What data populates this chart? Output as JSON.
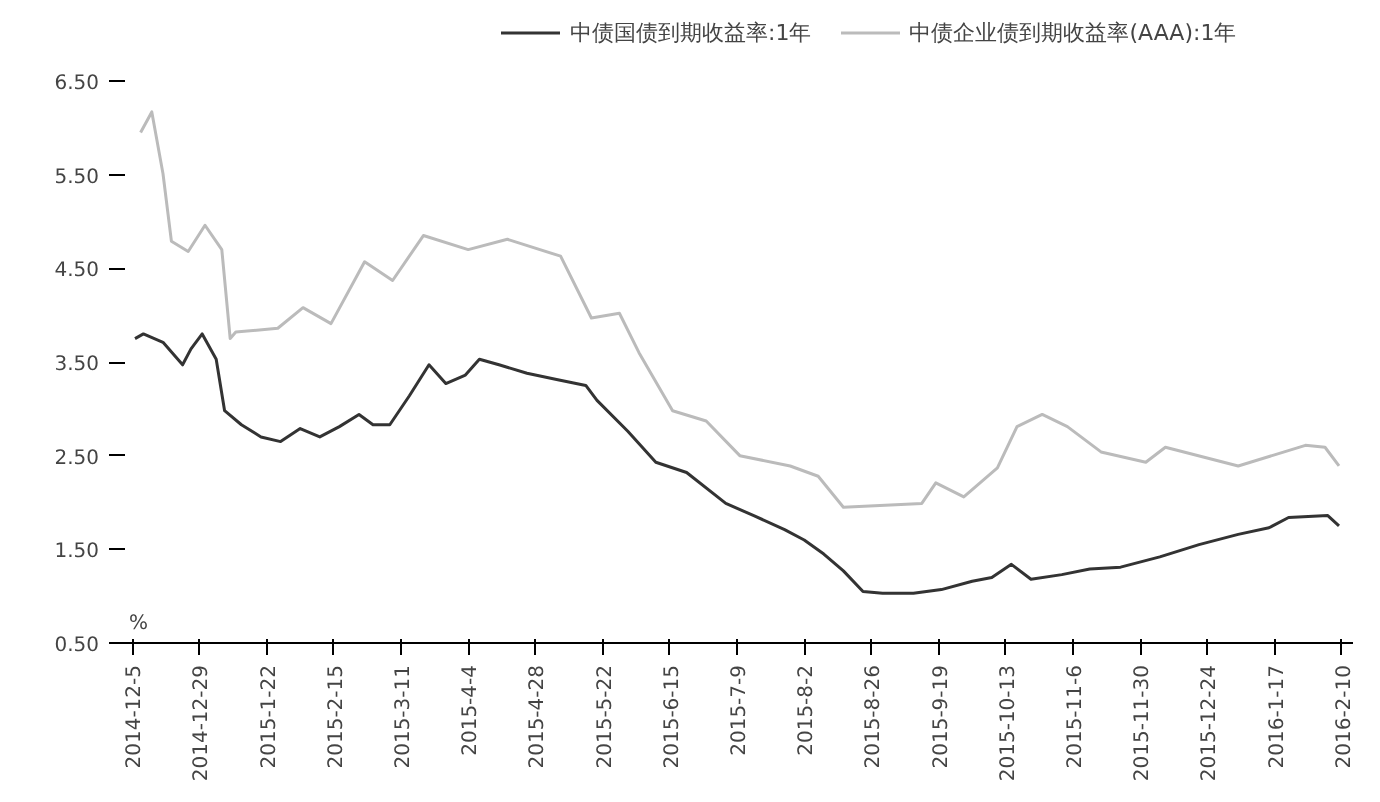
{
  "chart_data": {
    "type": "line",
    "legend": "top",
    "grid": false,
    "marker": "none",
    "line_style": "solid",
    "annotations": [
      "%"
    ],
    "xlim": [
      "2014-12-01",
      "2016-02-14"
    ],
    "xticks": [
      {
        "value": "2014-12-05",
        "label": "2014-12-5"
      },
      {
        "value": "2014-12-29",
        "label": "2014-12-29"
      },
      {
        "value": "2015-01-22",
        "label": "2015-1-22"
      },
      {
        "value": "2015-02-15",
        "label": "2015-2-15"
      },
      {
        "value": "2015-03-11",
        "label": "2015-3-11"
      },
      {
        "value": "2015-04-04",
        "label": "2015-4-4"
      },
      {
        "value": "2015-04-28",
        "label": "2015-4-28"
      },
      {
        "value": "2015-05-22",
        "label": "2015-5-22"
      },
      {
        "value": "2015-06-15",
        "label": "2015-6-15"
      },
      {
        "value": "2015-07-09",
        "label": "2015-7-9"
      },
      {
        "value": "2015-08-02",
        "label": "2015-8-2"
      },
      {
        "value": "2015-08-26",
        "label": "2015-8-26"
      },
      {
        "value": "2015-09-19",
        "label": "2015-9-19"
      },
      {
        "value": "2015-10-13",
        "label": "2015-10-13"
      },
      {
        "value": "2015-11-06",
        "label": "2015-11-6"
      },
      {
        "value": "2015-11-30",
        "label": "2015-11-30"
      },
      {
        "value": "2015-12-24",
        "label": "2015-12-24"
      },
      {
        "value": "2016-01-17",
        "label": "2016-1-17"
      },
      {
        "value": "2016-02-10",
        "label": "2016-2-10"
      }
    ],
    "ylim": [
      0.5,
      6.5
    ],
    "yticks": [
      {
        "value": 0.5,
        "label": "0.50"
      },
      {
        "value": 1.5,
        "label": "1.50"
      },
      {
        "value": 2.5,
        "label": "2.50"
      },
      {
        "value": 3.5,
        "label": "3.50"
      },
      {
        "value": 4.5,
        "label": "4.50"
      },
      {
        "value": 5.5,
        "label": "5.50"
      },
      {
        "value": 6.5,
        "label": "6.50"
      }
    ],
    "series": [
      {
        "name": "中债国债到期收益率:1年",
        "color": "#333333",
        "x": [
          "2014-12-06",
          "2014-12-09",
          "2014-12-16",
          "2014-12-23",
          "2014-12-26",
          "2014-12-30",
          "2015-01-04",
          "2015-01-07",
          "2015-01-13",
          "2015-01-20",
          "2015-01-27",
          "2015-02-03",
          "2015-02-10",
          "2015-02-17",
          "2015-02-24",
          "2015-03-01",
          "2015-03-07",
          "2015-03-14",
          "2015-03-21",
          "2015-03-27",
          "2015-04-03",
          "2015-04-08",
          "2015-04-15",
          "2015-04-25",
          "2015-05-06",
          "2015-05-16",
          "2015-05-20",
          "2015-05-31",
          "2015-06-10",
          "2015-06-21",
          "2015-07-05",
          "2015-07-15",
          "2015-07-26",
          "2015-08-02",
          "2015-08-09",
          "2015-08-16",
          "2015-08-23",
          "2015-08-30",
          "2015-09-10",
          "2015-09-20",
          "2015-10-01",
          "2015-10-08",
          "2015-10-15",
          "2015-10-22",
          "2015-11-02",
          "2015-11-12",
          "2015-11-23",
          "2015-12-07",
          "2015-12-21",
          "2016-01-04",
          "2016-01-15",
          "2016-01-22",
          "2016-02-05",
          "2016-02-09"
        ],
        "values": [
          3.75,
          3.8,
          3.71,
          3.47,
          3.64,
          3.8,
          3.53,
          2.98,
          2.83,
          2.7,
          2.65,
          2.79,
          2.7,
          2.81,
          2.94,
          2.83,
          2.83,
          3.14,
          3.47,
          3.27,
          3.36,
          3.53,
          3.47,
          3.38,
          3.31,
          3.25,
          3.09,
          2.76,
          2.43,
          2.32,
          1.99,
          1.86,
          1.71,
          1.6,
          1.45,
          1.27,
          1.05,
          1.03,
          1.03,
          1.07,
          1.16,
          1.2,
          1.34,
          1.18,
          1.23,
          1.29,
          1.31,
          1.42,
          1.55,
          1.66,
          1.73,
          1.84,
          1.86,
          1.75
        ]
      },
      {
        "name": "中债企业债到期收益率(AAA):1年",
        "color": "#bbbbbb",
        "x": [
          "2014-12-08",
          "2014-12-12",
          "2014-12-16",
          "2014-12-19",
          "2014-12-25",
          "2014-12-31",
          "2015-01-06",
          "2015-01-09",
          "2015-01-11",
          "2015-01-26",
          "2015-02-04",
          "2015-02-14",
          "2015-02-26",
          "2015-03-08",
          "2015-03-19",
          "2015-04-04",
          "2015-04-18",
          "2015-05-07",
          "2015-05-18",
          "2015-05-28",
          "2015-06-04",
          "2015-06-16",
          "2015-06-28",
          "2015-07-10",
          "2015-07-28",
          "2015-08-07",
          "2015-08-16",
          "2015-09-13",
          "2015-09-18",
          "2015-09-28",
          "2015-10-10",
          "2015-10-17",
          "2015-10-26",
          "2015-11-04",
          "2015-11-16",
          "2015-12-02",
          "2015-12-09",
          "2016-01-04",
          "2016-01-28",
          "2016-02-04",
          "2016-02-09"
        ],
        "values": [
          5.95,
          6.17,
          5.51,
          4.79,
          4.68,
          4.96,
          4.7,
          3.75,
          3.82,
          3.86,
          4.08,
          3.91,
          4.57,
          4.37,
          4.85,
          4.7,
          4.81,
          4.63,
          3.97,
          4.02,
          3.6,
          2.98,
          2.87,
          2.5,
          2.39,
          2.28,
          1.95,
          1.99,
          2.21,
          2.06,
          2.37,
          2.81,
          2.94,
          2.81,
          2.54,
          2.43,
          2.59,
          2.39,
          2.61,
          2.59,
          2.39
        ]
      }
    ]
  }
}
